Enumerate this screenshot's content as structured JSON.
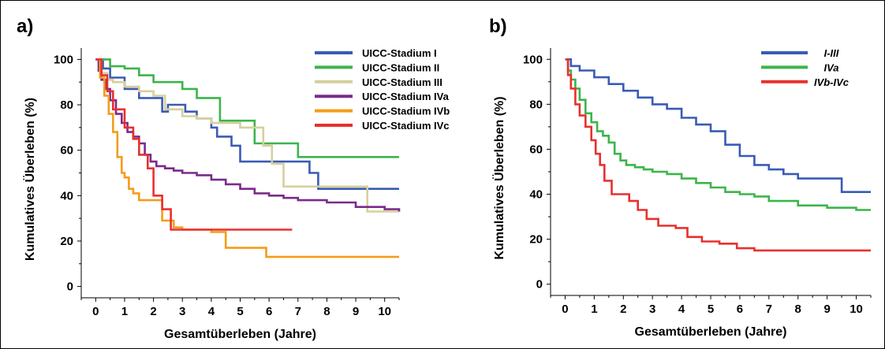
{
  "chart_data": [
    {
      "type": "line",
      "panel_label": "a)",
      "xlabel": "Gesamtüberleben (Jahre)",
      "ylabel": "Kumulatives Überleben (%)",
      "xlim": [
        -0.5,
        10.5
      ],
      "ylim": [
        -5,
        105
      ],
      "xticks": [
        "0",
        "1",
        "2",
        "3",
        "4",
        "5",
        "6",
        "7",
        "8",
        "9",
        "10"
      ],
      "yticks": [
        "0",
        "20",
        "40",
        "60",
        "80",
        "100"
      ],
      "legend_position": "top-right",
      "series": [
        {
          "name": "UICC-Stadium I",
          "color": "#3a5bb5",
          "x": [
            0,
            0.25,
            0.5,
            1.0,
            1.5,
            2.3,
            2.5,
            3.1,
            3.5,
            4.0,
            4.2,
            4.7,
            5.0,
            6.0,
            7.0,
            7.4,
            7.7,
            10.5
          ],
          "y": [
            100,
            96,
            92,
            87,
            83,
            77,
            80,
            77,
            74,
            70,
            66,
            62,
            55,
            55,
            55,
            50,
            43,
            43
          ]
        },
        {
          "name": "UICC-Stadium II",
          "color": "#3bb54a",
          "x": [
            0,
            0.3,
            0.5,
            1.0,
            1.5,
            2.0,
            2.5,
            3.0,
            3.5,
            4.0,
            4.3,
            5.0,
            5.5,
            6.0,
            7.0,
            10.5
          ],
          "y": [
            100,
            100,
            97,
            96,
            93,
            90,
            90,
            87,
            83,
            83,
            73,
            73,
            63,
            63,
            57,
            57
          ]
        },
        {
          "name": "UICC-Stadium III",
          "color": "#d6cf9c",
          "x": [
            0,
            0.2,
            0.4,
            0.6,
            1.0,
            1.5,
            2.0,
            2.4,
            3.0,
            3.5,
            4.0,
            4.5,
            5.0,
            5.5,
            5.8,
            6.1,
            6.5,
            9.0,
            9.4,
            10.5
          ],
          "y": [
            100,
            94,
            91,
            90,
            88,
            86,
            84,
            78,
            75,
            74,
            72,
            72,
            70,
            70,
            62,
            54,
            44,
            44,
            33,
            33
          ]
        },
        {
          "name": "UICC-Stadium IVa",
          "color": "#7b2a8c",
          "x": [
            0,
            0.1,
            0.2,
            0.35,
            0.5,
            0.7,
            0.9,
            1.1,
            1.3,
            1.5,
            1.7,
            1.9,
            2.1,
            2.4,
            2.7,
            3.0,
            3.5,
            4.0,
            4.5,
            5.0,
            5.5,
            6.0,
            6.5,
            7.0,
            8.0,
            9.0,
            10.0,
            10.5
          ],
          "y": [
            100,
            95,
            91,
            87,
            82,
            76,
            72,
            68,
            66,
            63,
            58,
            55,
            53,
            52,
            51,
            50,
            49,
            47,
            45,
            43,
            41,
            40,
            39,
            38,
            37,
            35,
            34,
            33
          ]
        },
        {
          "name": "UICC-Stadium IVb",
          "color": "#f59c1a",
          "x": [
            0,
            0.15,
            0.3,
            0.45,
            0.6,
            0.75,
            0.9,
            1.0,
            1.15,
            1.3,
            1.5,
            2.0,
            2.3,
            2.7,
            3.0,
            3.5,
            4.0,
            4.5,
            5.5,
            5.9,
            10.5
          ],
          "y": [
            100,
            92,
            84,
            76,
            68,
            57,
            50,
            48,
            43,
            41,
            38,
            38,
            29,
            26,
            25,
            25,
            24,
            17,
            17,
            13,
            13
          ]
        },
        {
          "name": "UICC-Stadium IVc",
          "color": "#e8302e",
          "x": [
            0,
            0.2,
            0.4,
            0.6,
            1.0,
            1.3,
            1.5,
            1.8,
            2.0,
            2.3,
            2.6,
            4.0,
            6.8
          ],
          "y": [
            100,
            93,
            86,
            78,
            70,
            65,
            58,
            52,
            40,
            34,
            25,
            25,
            25
          ]
        }
      ]
    },
    {
      "type": "line",
      "panel_label": "b)",
      "xlabel": "Gesamtüberleben (Jahre)",
      "ylabel": "Kumulatives Überleben (%)",
      "xlim": [
        -0.5,
        10.5
      ],
      "ylim": [
        -5,
        105
      ],
      "xticks": [
        "0",
        "1",
        "2",
        "3",
        "4",
        "5",
        "6",
        "7",
        "8",
        "9",
        "10"
      ],
      "yticks": [
        "0",
        "20",
        "40",
        "60",
        "80",
        "100"
      ],
      "legend_position": "top-right",
      "series": [
        {
          "name": "I-III",
          "color": "#3a5bb5",
          "x": [
            0,
            0.2,
            0.5,
            1.0,
            1.5,
            2.0,
            2.5,
            3.0,
            3.5,
            4.0,
            4.5,
            5.0,
            5.5,
            6.0,
            6.5,
            7.0,
            7.5,
            8.0,
            9.0,
            9.5,
            10.5
          ],
          "y": [
            100,
            97,
            95,
            92,
            89,
            86,
            83,
            80,
            78,
            74,
            71,
            68,
            62,
            57,
            53,
            51,
            49,
            47,
            47,
            41,
            41
          ]
        },
        {
          "name": "IVa",
          "color": "#3bb54a",
          "x": [
            0,
            0.1,
            0.2,
            0.35,
            0.5,
            0.7,
            0.9,
            1.1,
            1.3,
            1.5,
            1.7,
            1.9,
            2.1,
            2.4,
            2.7,
            3.0,
            3.5,
            4.0,
            4.5,
            5.0,
            5.5,
            6.0,
            6.5,
            7.0,
            8.0,
            9.0,
            10.0,
            10.5
          ],
          "y": [
            100,
            95,
            91,
            87,
            82,
            76,
            72,
            68,
            66,
            63,
            58,
            55,
            53,
            52,
            51,
            50,
            49,
            47,
            45,
            43,
            41,
            40,
            39,
            37,
            35,
            34,
            33,
            33
          ]
        },
        {
          "name": "IVb-IVc",
          "color": "#e8302e",
          "x": [
            0,
            0.1,
            0.2,
            0.35,
            0.5,
            0.7,
            0.9,
            1.05,
            1.2,
            1.35,
            1.6,
            1.9,
            2.2,
            2.5,
            2.8,
            3.2,
            3.8,
            4.2,
            4.7,
            5.3,
            5.9,
            6.5,
            10.5
          ],
          "y": [
            100,
            93,
            87,
            80,
            75,
            70,
            64,
            58,
            53,
            46,
            40,
            40,
            37,
            33,
            29,
            26,
            25,
            21,
            19,
            18,
            16,
            15,
            15
          ]
        }
      ]
    }
  ]
}
